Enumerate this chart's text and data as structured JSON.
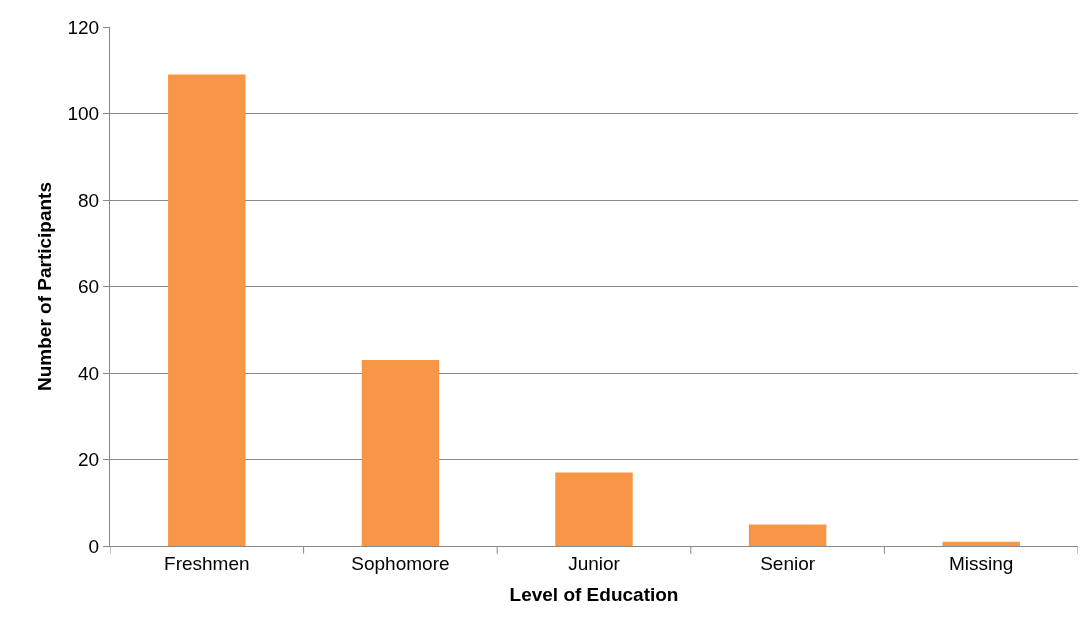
{
  "chart_data": {
    "type": "bar",
    "xlabel": "Level of Education",
    "ylabel": "Number of Participants",
    "categories": [
      "Freshmen",
      "Sophomore",
      "Junior",
      "Senior",
      "Missing"
    ],
    "values": [
      109,
      43,
      17,
      5,
      1
    ],
    "color": "#f79646",
    "ylim": [
      0,
      120
    ],
    "yticks": [
      0,
      20,
      40,
      60,
      80,
      100,
      120
    ],
    "grid": "y"
  }
}
